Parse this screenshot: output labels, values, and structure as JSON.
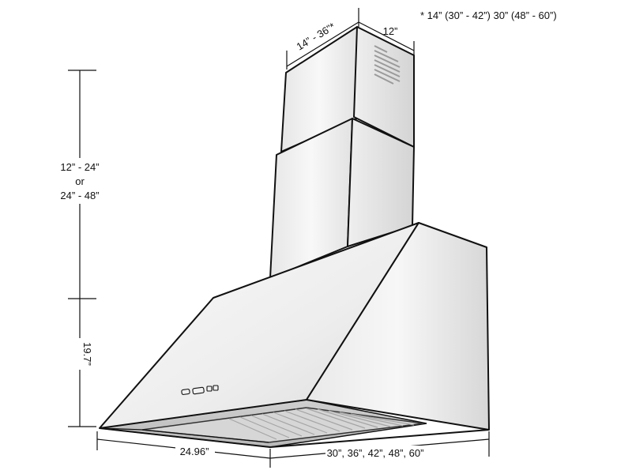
{
  "note": "* 14” (30” - 42”) 30” (48” - 60”)",
  "dimensions": {
    "chimney_width": "14” - 36”*",
    "chimney_depth": "12”",
    "chimney_height_line1": "12” - 24”",
    "chimney_height_line2": "or",
    "chimney_height_line3": "24” - 48”",
    "hood_height": "19.7”",
    "hood_depth": "24.96”",
    "hood_widths": "30”, 36”, 42”, 48”, 60”"
  },
  "colors": {
    "outline": "#111111",
    "steel_light": "#f4f4f4",
    "steel_mid": "#dcdcdc",
    "steel_dark": "#bdbdbd"
  }
}
